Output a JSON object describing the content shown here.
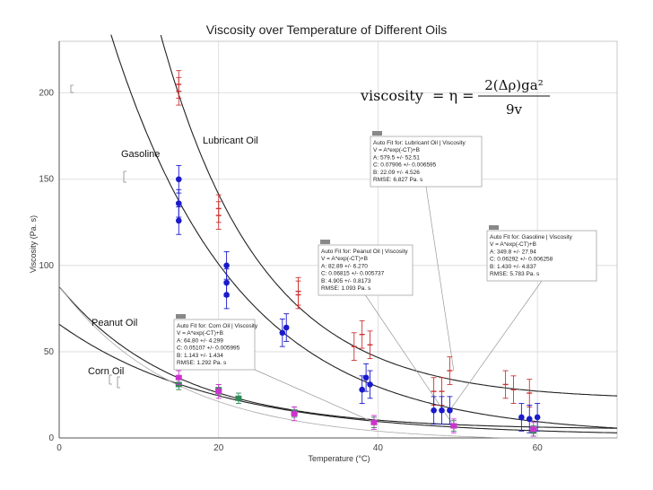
{
  "chart_data": {
    "type": "scatter",
    "title": "Viscosity over Temperature of Different Oils",
    "xlabel": "Temperature (°C)",
    "ylabel": "Viscosity (Pa. s)",
    "xlim": [
      0,
      70
    ],
    "ylim": [
      0,
      230
    ],
    "xticks": [
      "0",
      "20",
      "40",
      "60"
    ],
    "yticks": [
      "0",
      "50",
      "100",
      "150",
      "200"
    ],
    "grid": true,
    "formula": {
      "lhs": "viscosity",
      "eq": "= η =",
      "num": "2(Δρ)ga²",
      "den": "9v"
    },
    "colors": {
      "lubricant": "#cc3333",
      "gasoline": "#1a1acc",
      "corn": "#2e8b57",
      "peanut": "#cc33cc"
    },
    "series": [
      {
        "name": "Lubricant Oil",
        "color": "#cc3333",
        "fit": {
          "A": 579.5,
          "C": 0.07906,
          "B": 22.09
        },
        "points": [
          [
            15,
            205
          ],
          [
            15,
            201
          ],
          [
            20,
            133
          ],
          [
            20,
            129
          ],
          [
            30,
            85
          ],
          [
            30,
            83
          ],
          [
            37,
            53
          ],
          [
            38,
            60
          ],
          [
            39,
            54
          ],
          [
            47,
            27
          ],
          [
            48,
            27
          ],
          [
            49,
            39
          ],
          [
            56,
            31
          ],
          [
            57,
            28
          ],
          [
            59,
            26
          ]
        ],
        "err": 8
      },
      {
        "name": "Gasoline",
        "color": "#1a1acc",
        "fit": {
          "A": 349.8,
          "C": 0.06292,
          "B": 1.43
        },
        "points": [
          [
            15,
            150
          ],
          [
            15,
            136
          ],
          [
            15,
            126
          ],
          [
            21,
            100
          ],
          [
            21,
            90
          ],
          [
            21,
            83
          ],
          [
            28,
            61
          ],
          [
            28.5,
            64
          ],
          [
            38,
            28
          ],
          [
            38.5,
            35
          ],
          [
            39,
            31
          ],
          [
            47,
            16
          ],
          [
            48,
            16
          ],
          [
            49,
            16
          ],
          [
            58,
            12
          ],
          [
            59,
            11
          ],
          [
            60,
            12
          ]
        ],
        "err": 8
      },
      {
        "name": "Corn Oil",
        "color": "#2e8b57",
        "fit": {
          "A": 64.8,
          "C": 0.05107,
          "B": 1.143
        },
        "points": [
          [
            15,
            31
          ],
          [
            20,
            28
          ],
          [
            22.5,
            23
          ],
          [
            29.5,
            15
          ],
          [
            39.5,
            9
          ],
          [
            49.5,
            7
          ],
          [
            59.5,
            4
          ]
        ],
        "err": 3
      },
      {
        "name": "Peanut Oil",
        "color": "#cc33cc",
        "fit": {
          "A": 82.89,
          "C": 0.06815,
          "B": 4.905
        },
        "points": [
          [
            15,
            35
          ],
          [
            20,
            27
          ],
          [
            29.5,
            14
          ],
          [
            39.5,
            9
          ],
          [
            49.5,
            7
          ],
          [
            59.5,
            5
          ]
        ],
        "err": 4
      }
    ],
    "extra_curve": {
      "A": 90,
      "C": 0.068,
      "B": -2
    },
    "series_labels": {
      "lubricant": "Lubricant Oil",
      "gasoline": "Gasoline",
      "peanut": "Peanut Oil",
      "corn": "Corn Oil"
    },
    "fit_boxes": [
      {
        "key": "lubricant",
        "lines": [
          "Auto Fit for: Lubricant Oil | Viscosity",
          "V = A*exp(-CT)+B",
          "A: 579.5 +/- 52.51",
          "C: 0.07906 +/- 0.006595",
          "B: 22.09 +/- 4.526",
          "RMSE: 6.827 Pa. s"
        ],
        "anchor": [
          49.5,
          39
        ]
      },
      {
        "key": "gasoline",
        "lines": [
          "Auto Fit for: Gasoline | Viscosity",
          "V = A*exp(-CT)+B",
          "A: 349.8 +/- 27.94",
          "C: 0.06292 +/- 0.006258",
          "B: 1.430 +/- 4.837",
          "RMSE: 5.783 Pa. s"
        ],
        "anchor": [
          49,
          16
        ]
      },
      {
        "key": "peanut",
        "lines": [
          "Auto Fit for: Peanut Oil | Viscosity",
          "V = A*exp(-CT)+B",
          "A: 82.89 +/- 6.270",
          "C: 0.06815 +/- 0.005737",
          "B: 4.905 +/- 0.8173",
          "RMSE: 1.093 Pa. s"
        ],
        "anchor": [
          49.5,
          7
        ]
      },
      {
        "key": "corn",
        "lines": [
          "Auto Fit for: Corn Oil | Viscosity",
          "V = A*exp(-CT)+B",
          "A: 64.80 +/- 4.299",
          "C: 0.05107 +/- 0.005995",
          "B: 1.143 +/- 1.434",
          "RMSE: 1.292 Pa. s"
        ],
        "anchor": [
          39.5,
          9
        ]
      }
    ]
  }
}
